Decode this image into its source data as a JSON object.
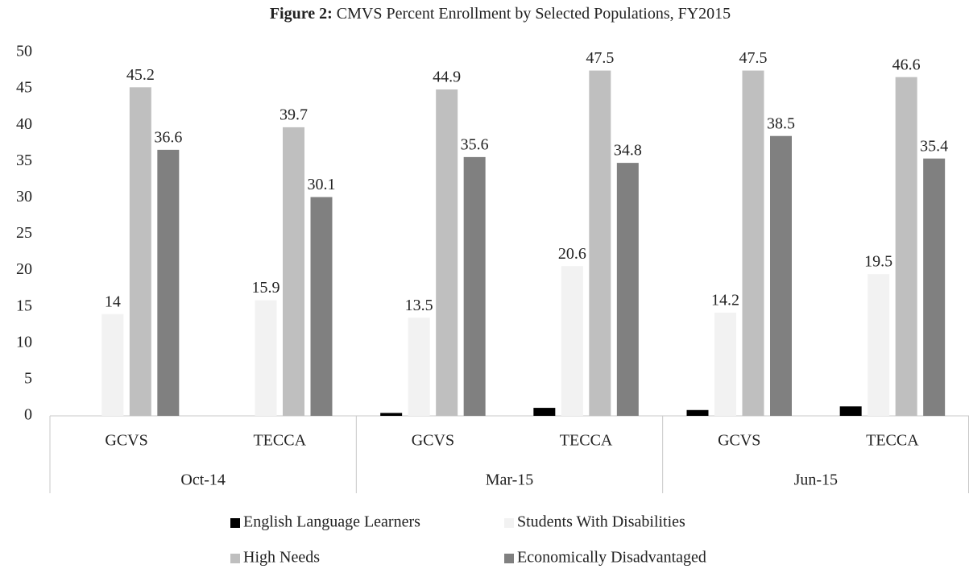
{
  "chart_data": {
    "type": "bar",
    "title_label": "Figure 2:",
    "title": "CMVS Percent Enrollment by Selected Populations, FY2015",
    "categories": [
      "GCVS",
      "TECCA",
      "GCVS",
      "TECCA",
      "GCVS",
      "TECCA"
    ],
    "groups": [
      "Oct-14",
      "Mar-15",
      "Jun-15"
    ],
    "series": [
      {
        "name": "English Language Learners",
        "color": "#000000",
        "labels": false,
        "values": [
          0,
          0,
          0.4,
          1.1,
          0.8,
          1.3
        ]
      },
      {
        "name": "Students With Disabilities",
        "color": "#f2f2f2",
        "labels": true,
        "values": [
          14,
          15.9,
          13.5,
          20.6,
          14.2,
          19.5
        ]
      },
      {
        "name": "High Needs",
        "color": "#bfbfbf",
        "labels": true,
        "values": [
          45.2,
          39.7,
          44.9,
          47.5,
          47.5,
          46.6
        ]
      },
      {
        "name": "Economically Disadvantaged",
        "color": "#808080",
        "labels": true,
        "values": [
          36.6,
          30.1,
          35.6,
          34.8,
          38.5,
          35.4
        ]
      }
    ],
    "ylim": [
      0,
      50
    ],
    "yticks": [
      0,
      5,
      10,
      15,
      20,
      25,
      30,
      35,
      40,
      45,
      50
    ],
    "grid": false,
    "legend": "bottom"
  }
}
